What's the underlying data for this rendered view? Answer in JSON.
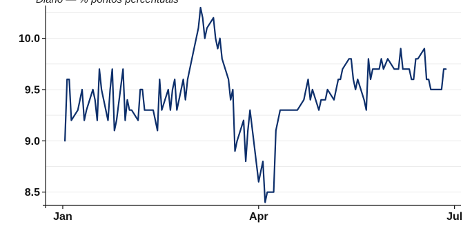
{
  "subtitle": "Diário — % pontos percentuais",
  "chart_data": {
    "type": "line",
    "title": "",
    "xlabel": "",
    "ylabel": "",
    "x_ticks": [
      "Jan",
      "Apr",
      "Jul"
    ],
    "x_tick_dates": [
      "2024-01-01",
      "2024-04-01",
      "2024-07-01"
    ],
    "xlim": [
      "2023-12-24",
      "2024-07-04"
    ],
    "y_ticks": [
      "8.5",
      "9.0",
      "9.5",
      "10.0"
    ],
    "ylim": [
      8.37,
      10.32
    ],
    "grid": true,
    "color": "#0d2f6b",
    "series": [
      {
        "x": [
          "2024-01-02",
          "2024-01-03",
          "2024-01-04",
          "2024-01-05",
          "2024-01-08",
          "2024-01-09",
          "2024-01-10",
          "2024-01-11",
          "2024-01-12",
          "2024-01-15",
          "2024-01-16",
          "2024-01-17",
          "2024-01-18",
          "2024-01-19",
          "2024-01-22",
          "2024-01-23",
          "2024-01-24",
          "2024-01-25",
          "2024-01-26",
          "2024-01-29",
          "2024-01-30",
          "2024-01-31",
          "2024-02-01",
          "2024-02-02",
          "2024-02-05",
          "2024-02-06",
          "2024-02-07",
          "2024-02-08",
          "2024-02-09",
          "2024-02-12",
          "2024-02-14",
          "2024-02-15",
          "2024-02-16",
          "2024-02-19",
          "2024-02-20",
          "2024-02-21",
          "2024-02-22",
          "2024-02-23",
          "2024-02-26",
          "2024-02-27",
          "2024-02-28",
          "2024-02-29",
          "2024-03-01",
          "2024-03-04",
          "2024-03-05",
          "2024-03-06",
          "2024-03-07",
          "2024-03-08",
          "2024-03-11",
          "2024-03-12",
          "2024-03-13",
          "2024-03-14",
          "2024-03-15",
          "2024-03-18",
          "2024-03-19",
          "2024-03-20",
          "2024-03-21",
          "2024-03-22",
          "2024-03-25",
          "2024-03-26",
          "2024-03-27",
          "2024-03-28",
          "2024-04-01",
          "2024-04-02",
          "2024-04-03",
          "2024-04-04",
          "2024-04-05",
          "2024-04-08",
          "2024-04-09",
          "2024-04-10",
          "2024-04-11",
          "2024-04-12",
          "2024-04-15",
          "2024-04-16",
          "2024-04-17",
          "2024-04-18",
          "2024-04-19",
          "2024-04-22",
          "2024-04-23",
          "2024-04-24",
          "2024-04-25",
          "2024-04-26",
          "2024-04-29",
          "2024-04-30",
          "2024-05-02",
          "2024-05-03",
          "2024-05-06",
          "2024-05-07",
          "2024-05-08",
          "2024-05-09",
          "2024-05-10",
          "2024-05-13",
          "2024-05-14",
          "2024-05-15",
          "2024-05-16",
          "2024-05-17",
          "2024-05-20",
          "2024-05-21",
          "2024-05-22",
          "2024-05-23",
          "2024-05-24",
          "2024-05-27",
          "2024-05-28",
          "2024-05-29",
          "2024-05-31",
          "2024-06-03",
          "2024-06-04",
          "2024-06-05",
          "2024-06-06",
          "2024-06-07",
          "2024-06-10",
          "2024-06-11",
          "2024-06-12",
          "2024-06-13",
          "2024-06-14",
          "2024-06-17",
          "2024-06-18",
          "2024-06-19",
          "2024-06-20",
          "2024-06-21",
          "2024-06-24",
          "2024-06-25",
          "2024-06-26",
          "2024-06-27"
        ],
        "values": [
          9.0,
          9.6,
          9.6,
          9.2,
          9.3,
          9.4,
          9.5,
          9.2,
          9.3,
          9.5,
          9.4,
          9.2,
          9.7,
          9.5,
          9.2,
          9.5,
          9.7,
          9.1,
          9.2,
          9.7,
          9.2,
          9.4,
          9.3,
          9.3,
          9.2,
          9.5,
          9.5,
          9.3,
          9.3,
          9.3,
          9.1,
          9.6,
          9.3,
          9.5,
          9.3,
          9.5,
          9.6,
          9.3,
          9.6,
          9.4,
          9.6,
          9.7,
          9.8,
          10.1,
          10.3,
          10.2,
          10.0,
          10.1,
          10.2,
          10.0,
          9.9,
          10.0,
          9.8,
          9.6,
          9.4,
          9.5,
          8.9,
          9.0,
          9.2,
          8.8,
          9.1,
          9.3,
          8.6,
          8.7,
          8.8,
          8.4,
          8.5,
          8.5,
          9.1,
          9.2,
          9.3,
          9.3,
          9.3,
          9.3,
          9.3,
          9.3,
          9.3,
          9.4,
          9.5,
          9.6,
          9.4,
          9.5,
          9.3,
          9.4,
          9.4,
          9.5,
          9.4,
          9.5,
          9.6,
          9.6,
          9.7,
          9.8,
          9.8,
          9.6,
          9.5,
          9.6,
          9.4,
          9.3,
          9.8,
          9.6,
          9.7,
          9.7,
          9.8,
          9.7,
          9.8,
          9.7,
          9.7,
          9.7,
          9.9,
          9.7,
          9.7,
          9.6,
          9.6,
          9.8,
          9.8,
          9.9,
          9.6,
          9.6,
          9.5,
          9.5,
          9.5,
          9.5,
          9.7,
          9.7
        ]
      }
    ]
  }
}
